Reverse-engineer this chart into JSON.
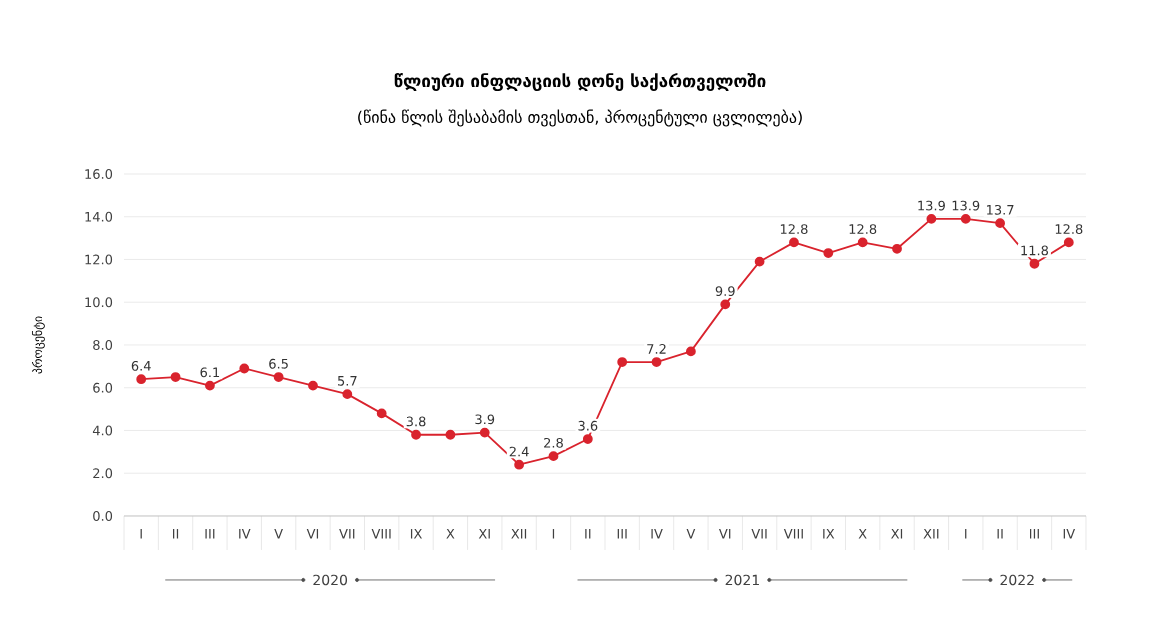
{
  "chart_data": {
    "type": "line",
    "title": "წლიური ინფლაციის დონე  საქართველოში",
    "subtitle": "(წინა წლის შესაბამის თვესთან, პროცენტული ცვლილება)",
    "ylabel": "პროცენტი",
    "categories": [
      "I",
      "II",
      "III",
      "IV",
      "V",
      "VI",
      "VII",
      "VIII",
      "IX",
      "X",
      "XI",
      "XII",
      "I",
      "II",
      "III",
      "IV",
      "V",
      "VI",
      "VII",
      "VIII",
      "IX",
      "X",
      "XI",
      "XII",
      "I",
      "II",
      "III",
      "IV"
    ],
    "series": [
      {
        "color": "#d9232d",
        "values": [
          6.4,
          6.5,
          6.1,
          6.9,
          6.5,
          6.1,
          5.7,
          4.8,
          3.8,
          3.8,
          3.9,
          2.4,
          2.8,
          3.6,
          7.2,
          7.2,
          7.7,
          9.9,
          11.9,
          12.8,
          12.3,
          12.8,
          12.5,
          13.9,
          13.9,
          13.7,
          11.8,
          12.8
        ],
        "value_labels": [
          "6.4",
          null,
          "6.1",
          null,
          "6.5",
          null,
          "5.7",
          null,
          "3.8",
          null,
          "3.9",
          "2.4",
          "2.8",
          "3.6",
          null,
          "7.2",
          null,
          "9.9",
          null,
          "12.8",
          null,
          "12.8",
          null,
          "13.9",
          "13.9",
          "13.7",
          "11.8",
          "12.8"
        ]
      }
    ],
    "ylim": [
      0,
      16
    ],
    "yticks": [
      {
        "value": 0,
        "label": "0.0"
      },
      {
        "value": 2,
        "label": "2.0"
      },
      {
        "value": 4,
        "label": "4.0"
      },
      {
        "value": 6,
        "label": "6.0"
      },
      {
        "value": 8,
        "label": "8.0"
      },
      {
        "value": 10,
        "label": "10.0"
      },
      {
        "value": 12,
        "label": "12.0"
      },
      {
        "value": 14,
        "label": "14.0"
      },
      {
        "value": 16,
        "label": "16.0"
      }
    ],
    "annotations": [
      "2020",
      "2021",
      "2022"
    ],
    "grid": "y",
    "marker": "circle",
    "line_style": "solid"
  }
}
